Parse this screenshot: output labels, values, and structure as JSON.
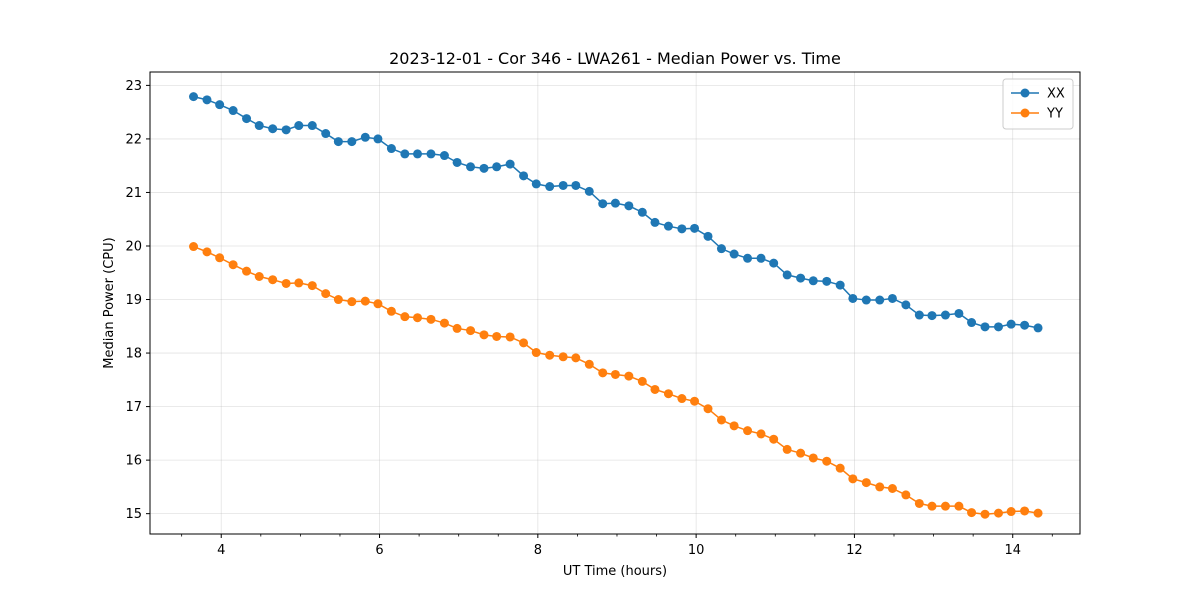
{
  "chart_data": {
    "type": "line",
    "title": "2023-12-01 - Cor 346 - LWA261 - Median Power vs. Time",
    "xlabel": "UT Time (hours)",
    "ylabel": "Median Power (CPU)",
    "xlim": [
      3.1,
      14.85
    ],
    "ylim": [
      14.62,
      23.25
    ],
    "xticks": [
      4,
      6,
      8,
      10,
      12,
      14
    ],
    "xtick_labels": [
      "4",
      "6",
      "8",
      "10",
      "12",
      "14"
    ],
    "yticks": [
      15,
      16,
      17,
      18,
      19,
      20,
      21,
      22,
      23
    ],
    "ytick_labels": [
      "15",
      "16",
      "17",
      "18",
      "19",
      "20",
      "21",
      "22",
      "23"
    ],
    "grid": true,
    "legend_position": "top-right",
    "x": [
      3.65,
      3.82,
      3.98,
      4.15,
      4.32,
      4.48,
      4.65,
      4.82,
      4.98,
      5.15,
      5.32,
      5.48,
      5.65,
      5.82,
      5.98,
      6.15,
      6.32,
      6.48,
      6.65,
      6.82,
      6.98,
      7.15,
      7.32,
      7.48,
      7.65,
      7.82,
      7.98,
      8.15,
      8.32,
      8.48,
      8.65,
      8.82,
      8.98,
      9.15,
      9.32,
      9.48,
      9.65,
      9.82,
      9.98,
      10.15,
      10.32,
      10.48,
      10.65,
      10.82,
      10.98,
      11.15,
      11.32,
      11.48,
      11.65,
      11.82,
      11.98,
      12.15,
      12.32,
      12.48,
      12.65,
      12.82,
      12.98,
      13.15,
      13.32,
      13.48,
      13.65,
      13.82,
      13.98,
      14.15,
      14.32
    ],
    "series": [
      {
        "name": "XX",
        "color": "#1f77b4",
        "values": [
          22.79,
          22.73,
          22.64,
          22.53,
          22.38,
          22.25,
          22.19,
          22.17,
          22.25,
          22.25,
          22.1,
          21.95,
          21.95,
          22.03,
          22.0,
          21.82,
          21.72,
          21.72,
          21.72,
          21.69,
          21.56,
          21.48,
          21.45,
          21.48,
          21.53,
          21.31,
          21.16,
          21.11,
          21.13,
          21.13,
          21.02,
          20.79,
          20.8,
          20.75,
          20.63,
          20.44,
          20.37,
          20.32,
          20.33,
          20.18,
          19.95,
          19.85,
          19.77,
          19.77,
          19.68,
          19.46,
          19.4,
          19.35,
          19.34,
          19.27,
          19.02,
          18.99,
          18.99,
          19.02,
          18.9,
          18.71,
          18.7,
          18.71,
          18.74,
          18.57,
          18.49,
          18.49,
          18.54,
          18.52,
          18.47
        ]
      },
      {
        "name": "YY",
        "color": "#ff7f0e",
        "values": [
          19.99,
          19.89,
          19.78,
          19.65,
          19.53,
          19.43,
          19.37,
          19.3,
          19.31,
          19.26,
          19.11,
          19.0,
          18.96,
          18.97,
          18.92,
          18.78,
          18.68,
          18.66,
          18.63,
          18.56,
          18.46,
          18.42,
          18.34,
          18.31,
          18.3,
          18.19,
          18.01,
          17.96,
          17.93,
          17.91,
          17.79,
          17.63,
          17.6,
          17.57,
          17.47,
          17.32,
          17.24,
          17.15,
          17.1,
          16.96,
          16.75,
          16.64,
          16.55,
          16.49,
          16.39,
          16.2,
          16.13,
          16.04,
          15.98,
          15.85,
          15.65,
          15.58,
          15.5,
          15.47,
          15.35,
          15.19,
          15.14,
          15.14,
          15.14,
          15.02,
          14.99,
          15.01,
          15.04,
          15.05,
          15.01
        ]
      }
    ]
  }
}
